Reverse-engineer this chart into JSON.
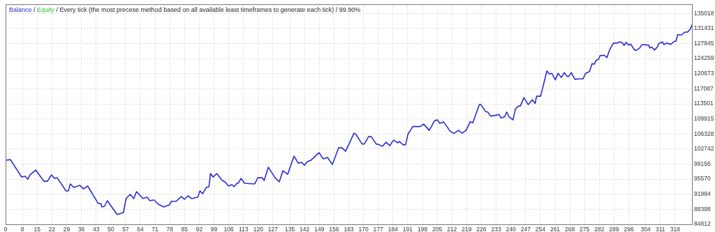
{
  "chart_data": {
    "type": "line",
    "annotations": [
      "/",
      "/"
    ],
    "title": "Every tick (the most precese method based on all available least timeframes to generate each tick) / 99.90%",
    "legend": "top left",
    "grid": true,
    "x": [
      0,
      2.3,
      7.6,
      9.3,
      10.6,
      11.6,
      14.3,
      18.2,
      19.9,
      21.8,
      23.2,
      24.5,
      28.7,
      29.8,
      30.8,
      32.4,
      35.3,
      37,
      39,
      44,
      45.3,
      45.7,
      47,
      48.3,
      53,
      56,
      57.2,
      59.2,
      60.9,
      62.2,
      65.2,
      67.2,
      68.5,
      70.5,
      72.5,
      75.1,
      77.8,
      78.8,
      81,
      83.4,
      85,
      86.7,
      88.4,
      91.3,
      92.3,
      93.6,
      95.3,
      96.6,
      97.3,
      98.6,
      100.3,
      102.9,
      104.2,
      105.9,
      107.5,
      108.5,
      109.9,
      110.5,
      111.8,
      113.5,
      118.1,
      118.5,
      119.8,
      121.8,
      122.8,
      124.8,
      128,
      130,
      131.7,
      134,
      137,
      139,
      140.6,
      142,
      143.3,
      145,
      148.9,
      150.9,
      152.9,
      155.2,
      158.2,
      159.8,
      161.5,
      165.5,
      166.4,
      169.3,
      170.4,
      172.4,
      173.7,
      176,
      177.4,
      179,
      180.7,
      182.5,
      184.3,
      186.3,
      187,
      189,
      190,
      191.1,
      193.4,
      196.9,
      198.6,
      201.2,
      203.8,
      205.2,
      206.2,
      208.1,
      211.1,
      212.9,
      215.1,
      216.9,
      218.7,
      220.7,
      221.9,
      225,
      225.7,
      228,
      229,
      230.3,
      233.6,
      234.3,
      235.3,
      237,
      238,
      239.1,
      241,
      242.2,
      243.7,
      244.5,
      246.2,
      248.2,
      250.2,
      251.5,
      252.2,
      254.1,
      257.1,
      258.3,
      259.4,
      261.1,
      262.4,
      264,
      265.4,
      266.7,
      267.4,
      268.7,
      270.4,
      272.3,
      274.3,
      275.5,
      277.3,
      278.6,
      279.6,
      280.6,
      281.6,
      282.4,
      284.3,
      285.6,
      286.9,
      288.7,
      290.4,
      291.5,
      292.7,
      293.8,
      294.7,
      295.8,
      296.8,
      298.9,
      299.6,
      301.1,
      302.2,
      303.6,
      304.1,
      305.4,
      306,
      307,
      308.2,
      309.4,
      310.4,
      312,
      312.7,
      314,
      316,
      317.6,
      318.4,
      319.2,
      321,
      322.6,
      324,
      325.3,
      326
    ],
    "series": [
      {
        "name": "Balance",
        "color": "#2b2bd0",
        "values": [
          100060,
          100220,
          96080,
          96250,
          95580,
          96580,
          97740,
          95080,
          95080,
          96580,
          95750,
          95910,
          92770,
          92770,
          94420,
          93590,
          94090,
          93260,
          93930,
          89780,
          89780,
          88960,
          89120,
          90450,
          87130,
          87630,
          90940,
          91940,
          90940,
          92600,
          90940,
          91270,
          90450,
          90610,
          89620,
          88960,
          89450,
          90280,
          90280,
          91440,
          90780,
          91610,
          90940,
          91270,
          92770,
          92100,
          93590,
          93760,
          96910,
          96080,
          96910,
          95250,
          94920,
          93930,
          94260,
          93760,
          94590,
          94590,
          95750,
          94590,
          94420,
          94590,
          95910,
          95910,
          95250,
          98400,
          95910,
          94920,
          97570,
          96740,
          101050,
          99390,
          99560,
          98900,
          99720,
          100060,
          101880,
          100390,
          100720,
          99060,
          103040,
          103040,
          102210,
          106520,
          106250,
          103950,
          103950,
          105690,
          105690,
          103950,
          103780,
          103370,
          104360,
          103540,
          104860,
          104200,
          104530,
          103700,
          103780,
          106250,
          108090,
          108090,
          108670,
          107180,
          109500,
          109670,
          108840,
          109170,
          107020,
          106440,
          107180,
          106520,
          107180,
          109250,
          109000,
          113310,
          113310,
          111650,
          111550,
          110580,
          110830,
          110990,
          110160,
          110400,
          111550,
          110400,
          109670,
          112320,
          112980,
          112980,
          114970,
          113310,
          114470,
          113560,
          115300,
          115300,
          121330,
          120600,
          120770,
          119210,
          120770,
          119770,
          120930,
          120010,
          120010,
          120930,
          119320,
          119440,
          119440,
          120770,
          121170,
          123090,
          122920,
          123920,
          124080,
          124960,
          125080,
          124500,
          126340,
          127950,
          127950,
          128230,
          128130,
          127400,
          128130,
          127500,
          127730,
          126240,
          126240,
          126740,
          127560,
          127600,
          127500,
          127500,
          126800,
          126970,
          126340,
          126900,
          127900,
          128230,
          127600,
          127950,
          127660,
          128390,
          128390,
          129960,
          129880,
          130550,
          130600,
          131380,
          132270
        ]
      },
      {
        "name": "Equity",
        "color": "#33bb33",
        "values": [
          null,
          null,
          null,
          null,
          null,
          null,
          null,
          null,
          null,
          null,
          null,
          null,
          null,
          null,
          null,
          null,
          null,
          null,
          null,
          null,
          null,
          null,
          null,
          null,
          null,
          null,
          null,
          null,
          null,
          null,
          null,
          null,
          null,
          null,
          null,
          null,
          null,
          null,
          null,
          null,
          null,
          null,
          null,
          null,
          null,
          null,
          null,
          null,
          null,
          null,
          null,
          null,
          null,
          null,
          null,
          null,
          null,
          null,
          null,
          null,
          null,
          null,
          null,
          null,
          null,
          null,
          null,
          null,
          null,
          null,
          null,
          null,
          null,
          null,
          null,
          null,
          null,
          null,
          null,
          null,
          null,
          null,
          null,
          null,
          null,
          null,
          null,
          null,
          null,
          null,
          null,
          null,
          null,
          null,
          null,
          null,
          null,
          null,
          null,
          null,
          null,
          null,
          null,
          null,
          null,
          null,
          null,
          null,
          null,
          null,
          null,
          null,
          null,
          null,
          null,
          null,
          null,
          null,
          null,
          null,
          null,
          null,
          null,
          null,
          null,
          null,
          null,
          null,
          null,
          null,
          null,
          null,
          null,
          null,
          null,
          null,
          null,
          null,
          null,
          null,
          null,
          null,
          null,
          null,
          null,
          null,
          null,
          null,
          null,
          null,
          null,
          null,
          null,
          null,
          null,
          null,
          null,
          null,
          null,
          null,
          null,
          null,
          null,
          null,
          null,
          null,
          null,
          null,
          null,
          null,
          null,
          null,
          null,
          null,
          null,
          null,
          null,
          null,
          null,
          null,
          null,
          null,
          null,
          null,
          null,
          null,
          null,
          null,
          null,
          null,
          null
        ]
      }
    ],
    "xlim": [
      0,
      326
    ],
    "xticks": [
      0,
      8,
      15,
      22,
      29,
      36,
      43,
      50,
      57,
      64,
      71,
      78,
      85,
      92,
      99,
      106,
      113,
      120,
      127,
      135,
      142,
      149,
      156,
      163,
      170,
      177,
      184,
      191,
      198,
      205,
      212,
      219,
      226,
      233,
      240,
      247,
      254,
      261,
      268,
      275,
      282,
      289,
      296,
      304,
      311,
      318
    ],
    "ylim": [
      84812,
      137200
    ],
    "yticks": [
      84812,
      88398,
      91984,
      95570,
      99156,
      102742,
      106328,
      109915,
      113501,
      117087,
      120673,
      124259,
      127845,
      131431,
      135018
    ]
  }
}
